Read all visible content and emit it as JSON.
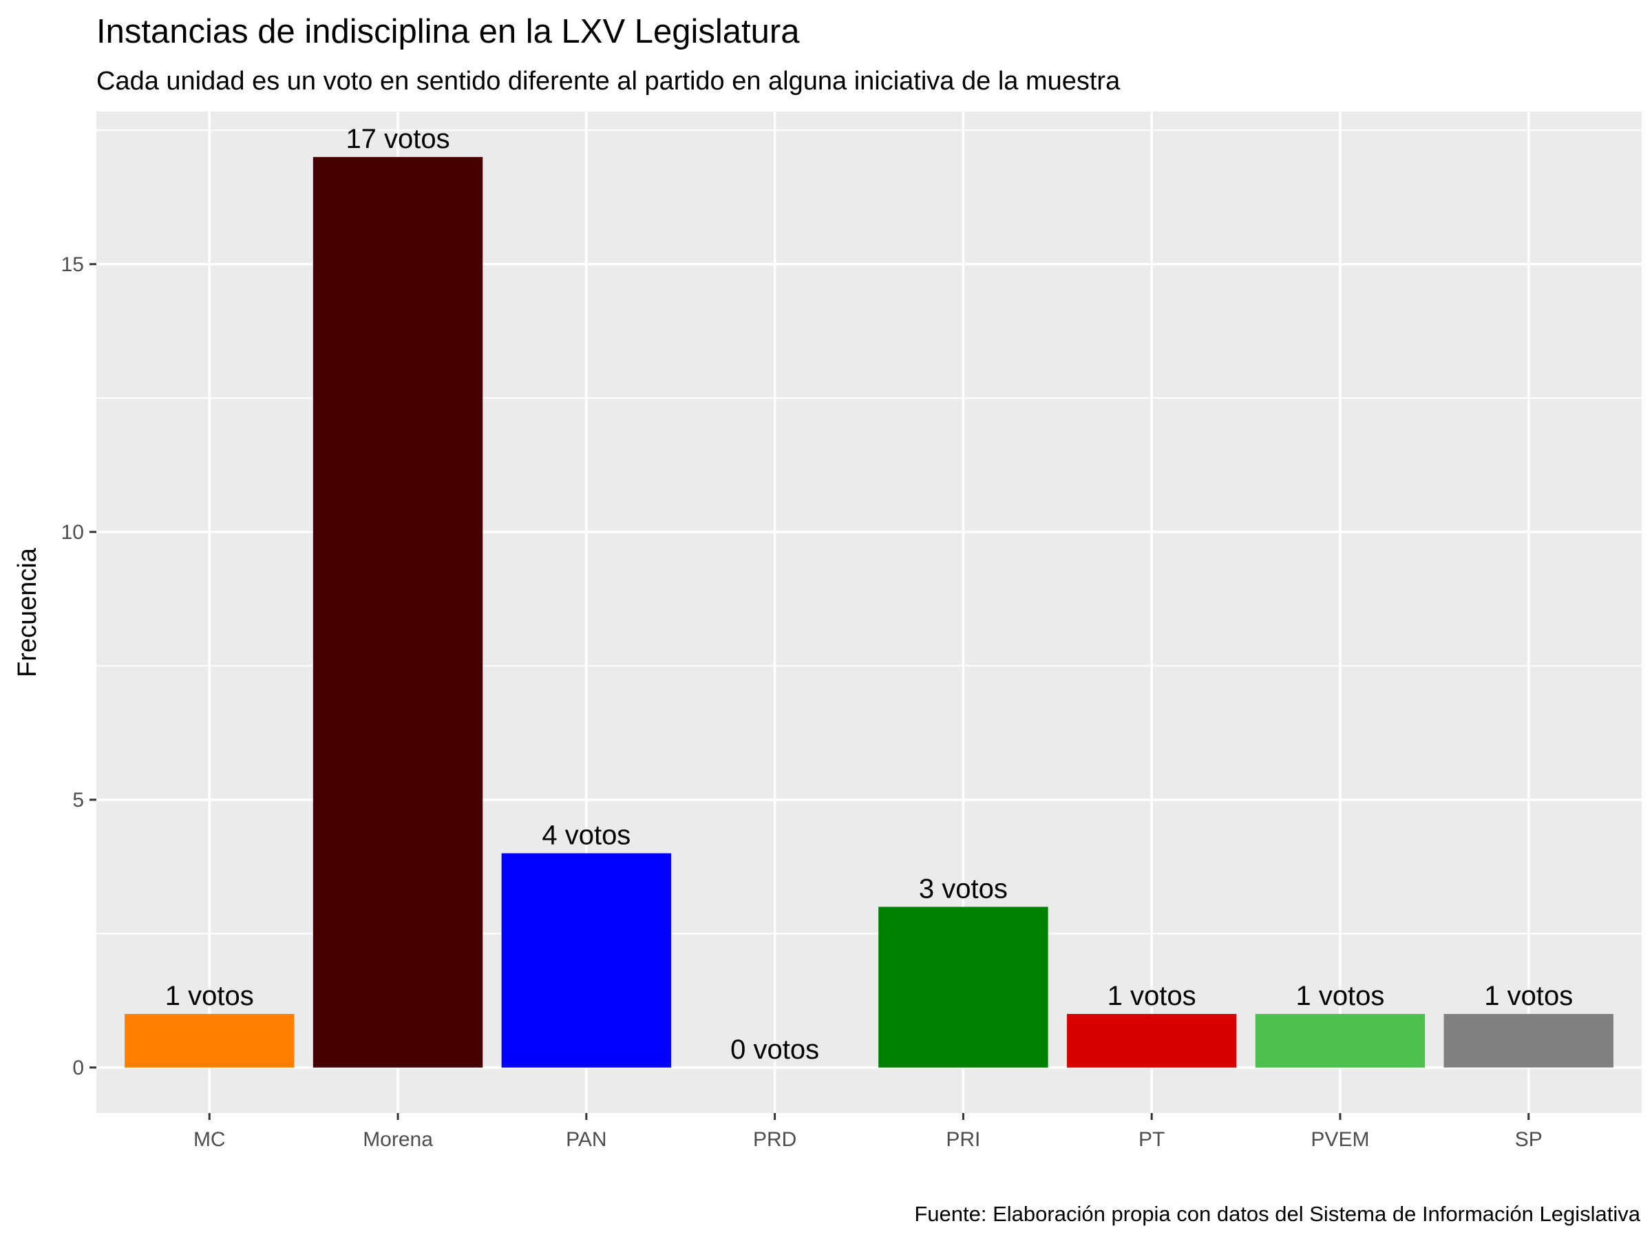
{
  "chart_data": {
    "type": "bar",
    "title": "Instancias de indisciplina en la LXV Legislatura",
    "subtitle": "Cada unidad es un voto en sentido diferente al partido en alguna iniciativa de la muestra",
    "caption": "Fuente: Elaboración propia con datos del Sistema de Información Legislativa",
    "xlabel": "",
    "ylabel": "Frecuencia",
    "categories": [
      "MC",
      "Morena",
      "PAN",
      "PRD",
      "PRI",
      "PT",
      "PVEM",
      "SP"
    ],
    "values": [
      1,
      17,
      4,
      0,
      3,
      1,
      1,
      1
    ],
    "data_labels": [
      "1 votos",
      "17 votos",
      "4 votos",
      "0 votos",
      "3 votos",
      "1 votos",
      "1 votos",
      "1 votos"
    ],
    "colors": [
      "#FF7F00",
      "#470000",
      "#0000FF",
      "#FFD700",
      "#008000",
      "#D90000",
      "#4CBF4C",
      "#808080"
    ],
    "yticks": [
      0,
      5,
      10,
      15
    ],
    "ylim": [
      -0.85,
      17.85
    ],
    "grid": true,
    "legend": "none"
  }
}
